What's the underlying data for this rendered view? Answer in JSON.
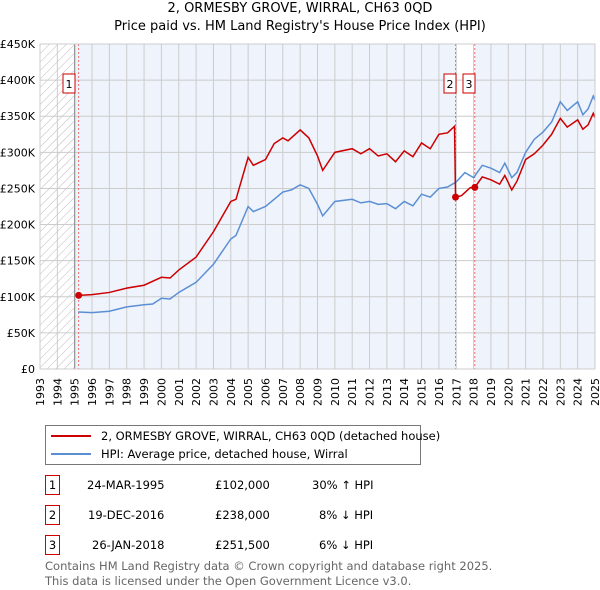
{
  "chart_data": {
    "type": "line",
    "title": "2, ORMESBY GROVE, WIRRAL, CH63 0QD",
    "subtitle": "Price paid vs. HM Land Registry's House Price Index (HPI)",
    "xlim": [
      1993,
      2025
    ],
    "ylim": [
      0,
      450000
    ],
    "x_ticks": [
      "1993",
      "1994",
      "1995",
      "1996",
      "1997",
      "1998",
      "1999",
      "2000",
      "2001",
      "2002",
      "2003",
      "2004",
      "2005",
      "2006",
      "2007",
      "2008",
      "2009",
      "2010",
      "2011",
      "2012",
      "2013",
      "2014",
      "2015",
      "2016",
      "2017",
      "2018",
      "2019",
      "2020",
      "2021",
      "2022",
      "2023",
      "2024",
      "2025"
    ],
    "y_ticks": [
      {
        "v": 0,
        "label": "£0"
      },
      {
        "v": 50000,
        "label": "£50K"
      },
      {
        "v": 100000,
        "label": "£100K"
      },
      {
        "v": 150000,
        "label": "£150K"
      },
      {
        "v": 200000,
        "label": "£200K"
      },
      {
        "v": 250000,
        "label": "£250K"
      },
      {
        "v": 300000,
        "label": "£300K"
      },
      {
        "v": 350000,
        "label": "£350K"
      },
      {
        "v": 400000,
        "label": "£400K"
      },
      {
        "v": 450000,
        "label": "£450K"
      }
    ],
    "grid": true,
    "series": [
      {
        "name": "2, ORMESBY GROVE, WIRRAL, CH63 0QD (detached house)",
        "color": "#cc0000",
        "points": [
          [
            1995.23,
            102
          ],
          [
            1996,
            103
          ],
          [
            1997,
            106
          ],
          [
            1998,
            112
          ],
          [
            1999,
            116
          ],
          [
            2000,
            127
          ],
          [
            2000.5,
            126
          ],
          [
            2001,
            137
          ],
          [
            2002,
            155
          ],
          [
            2003,
            190
          ],
          [
            2004,
            232
          ],
          [
            2004.3,
            235
          ],
          [
            2005,
            293
          ],
          [
            2005.3,
            282
          ],
          [
            2006,
            290
          ],
          [
            2006.5,
            312
          ],
          [
            2007,
            320
          ],
          [
            2007.3,
            316
          ],
          [
            2008,
            331
          ],
          [
            2008.5,
            320
          ],
          [
            2009,
            295
          ],
          [
            2009.3,
            275
          ],
          [
            2010,
            300
          ],
          [
            2011,
            305
          ],
          [
            2011.5,
            298
          ],
          [
            2012,
            305
          ],
          [
            2012.5,
            295
          ],
          [
            2013,
            298
          ],
          [
            2013.5,
            287
          ],
          [
            2014,
            302
          ],
          [
            2014.5,
            294
          ],
          [
            2015,
            313
          ],
          [
            2015.5,
            305
          ],
          [
            2016,
            325
          ],
          [
            2016.5,
            327
          ],
          [
            2016.9,
            336
          ],
          [
            2016.96,
            238
          ],
          [
            2017.3,
            240
          ],
          [
            2017.8,
            251
          ],
          [
            2018.07,
            251.5
          ],
          [
            2018.5,
            266
          ],
          [
            2019,
            262
          ],
          [
            2019.5,
            256
          ],
          [
            2019.8,
            268
          ],
          [
            2020.2,
            248
          ],
          [
            2020.5,
            260
          ],
          [
            2021,
            290
          ],
          [
            2021.5,
            298
          ],
          [
            2022,
            310
          ],
          [
            2022.5,
            325
          ],
          [
            2023,
            347
          ],
          [
            2023.4,
            335
          ],
          [
            2024,
            345
          ],
          [
            2024.3,
            332
          ],
          [
            2024.6,
            338
          ],
          [
            2024.9,
            354
          ],
          [
            2025,
            348
          ]
        ]
      },
      {
        "name": "HPI: Average price, detached house, Wirral",
        "color": "#5b8fd4",
        "points": [
          [
            1995.2,
            79
          ],
          [
            1996,
            78
          ],
          [
            1997,
            80
          ],
          [
            1998,
            86
          ],
          [
            1999,
            89
          ],
          [
            1999.5,
            90
          ],
          [
            2000,
            98
          ],
          [
            2000.5,
            97
          ],
          [
            2001,
            106
          ],
          [
            2002,
            120
          ],
          [
            2003,
            145
          ],
          [
            2004,
            180
          ],
          [
            2004.3,
            185
          ],
          [
            2005,
            225
          ],
          [
            2005.3,
            218
          ],
          [
            2006,
            225
          ],
          [
            2006.5,
            235
          ],
          [
            2007,
            245
          ],
          [
            2007.5,
            248
          ],
          [
            2008,
            255
          ],
          [
            2008.5,
            250
          ],
          [
            2009,
            228
          ],
          [
            2009.3,
            212
          ],
          [
            2010,
            232
          ],
          [
            2011,
            235
          ],
          [
            2011.5,
            230
          ],
          [
            2012,
            232
          ],
          [
            2012.5,
            228
          ],
          [
            2013,
            229
          ],
          [
            2013.5,
            222
          ],
          [
            2014,
            232
          ],
          [
            2014.5,
            226
          ],
          [
            2015,
            242
          ],
          [
            2015.5,
            238
          ],
          [
            2016,
            250
          ],
          [
            2016.5,
            252
          ],
          [
            2017,
            259
          ],
          [
            2017.5,
            272
          ],
          [
            2018,
            265
          ],
          [
            2018.5,
            282
          ],
          [
            2019,
            278
          ],
          [
            2019.5,
            272
          ],
          [
            2019.8,
            285
          ],
          [
            2020.2,
            265
          ],
          [
            2020.5,
            272
          ],
          [
            2021,
            300
          ],
          [
            2021.5,
            318
          ],
          [
            2022,
            328
          ],
          [
            2022.5,
            342
          ],
          [
            2023,
            370
          ],
          [
            2023.4,
            358
          ],
          [
            2024,
            370
          ],
          [
            2024.3,
            352
          ],
          [
            2024.6,
            360
          ],
          [
            2024.9,
            378
          ],
          [
            2025,
            372
          ]
        ]
      }
    ],
    "sales": [
      {
        "label": "1",
        "x": 1995.23,
        "y": 102
      },
      {
        "label": "2",
        "x": 2016.96,
        "y": 238
      },
      {
        "label": "3",
        "x": 2018.07,
        "y": 251.5
      }
    ]
  },
  "transactions": [
    {
      "num": "1",
      "date": "24-MAR-1995",
      "price": "£102,000",
      "hpi": "30% ↑ HPI"
    },
    {
      "num": "2",
      "date": "19-DEC-2016",
      "price": "£238,000",
      "hpi": "8% ↓ HPI"
    },
    {
      "num": "3",
      "date": "26-JAN-2018",
      "price": "£251,500",
      "hpi": "6% ↓ HPI"
    }
  ],
  "footer": [
    "Contains HM Land Registry data © Crown copyright and database right 2025.",
    "This data is licensed under the Open Government Licence v3.0."
  ]
}
